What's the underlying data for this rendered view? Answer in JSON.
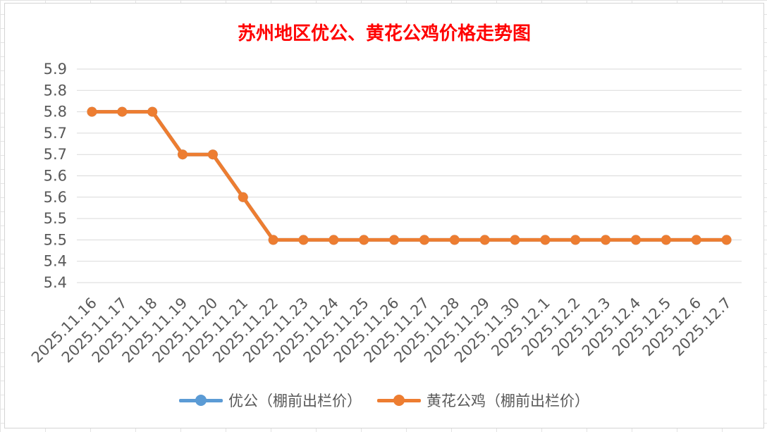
{
  "chart_data": {
    "type": "line",
    "title": "苏州地区优公、黄花公鸡价格走势图",
    "xlabel": "",
    "ylabel": "",
    "ylim": [
      5.4,
      5.9
    ],
    "yticks": [
      "5.9",
      "5.8",
      "5.8",
      "5.7",
      "5.7",
      "5.6",
      "5.6",
      "5.5",
      "5.5",
      "5.4",
      "5.4"
    ],
    "grid": true,
    "legend_position": "bottom",
    "categories": [
      "2025.11.16",
      "2025.11.17",
      "2025.11.18",
      "2025.11.19",
      "2025.11.20",
      "2025.11.21",
      "2025.11.22",
      "2025.11.23",
      "2025.11.24",
      "2025.11.25",
      "2025.11.26",
      "2025.11.27",
      "2025.11.28",
      "2025.11.29",
      "2025.11.30",
      "2025.12.1",
      "2025.12.2",
      "2025.12.3",
      "2025.12.4",
      "2025.12.5",
      "2025.12.6",
      "2025.12.7"
    ],
    "series": [
      {
        "name": "优公（棚前出栏价）",
        "color": "#5b9bd5",
        "values": [
          5.8,
          5.8,
          5.8,
          5.7,
          5.7,
          5.6,
          5.5,
          5.5,
          5.5,
          5.5,
          5.5,
          5.5,
          5.5,
          5.5,
          5.5,
          5.5,
          5.5,
          5.5,
          5.5,
          5.5,
          5.5,
          5.5
        ]
      },
      {
        "name": "黄花公鸡（棚前出栏价）",
        "color": "#ed7d31",
        "values": [
          5.8,
          5.8,
          5.8,
          5.7,
          5.7,
          5.6,
          5.5,
          5.5,
          5.5,
          5.5,
          5.5,
          5.5,
          5.5,
          5.5,
          5.5,
          5.5,
          5.5,
          5.5,
          5.5,
          5.5,
          5.5,
          5.5
        ]
      }
    ]
  }
}
